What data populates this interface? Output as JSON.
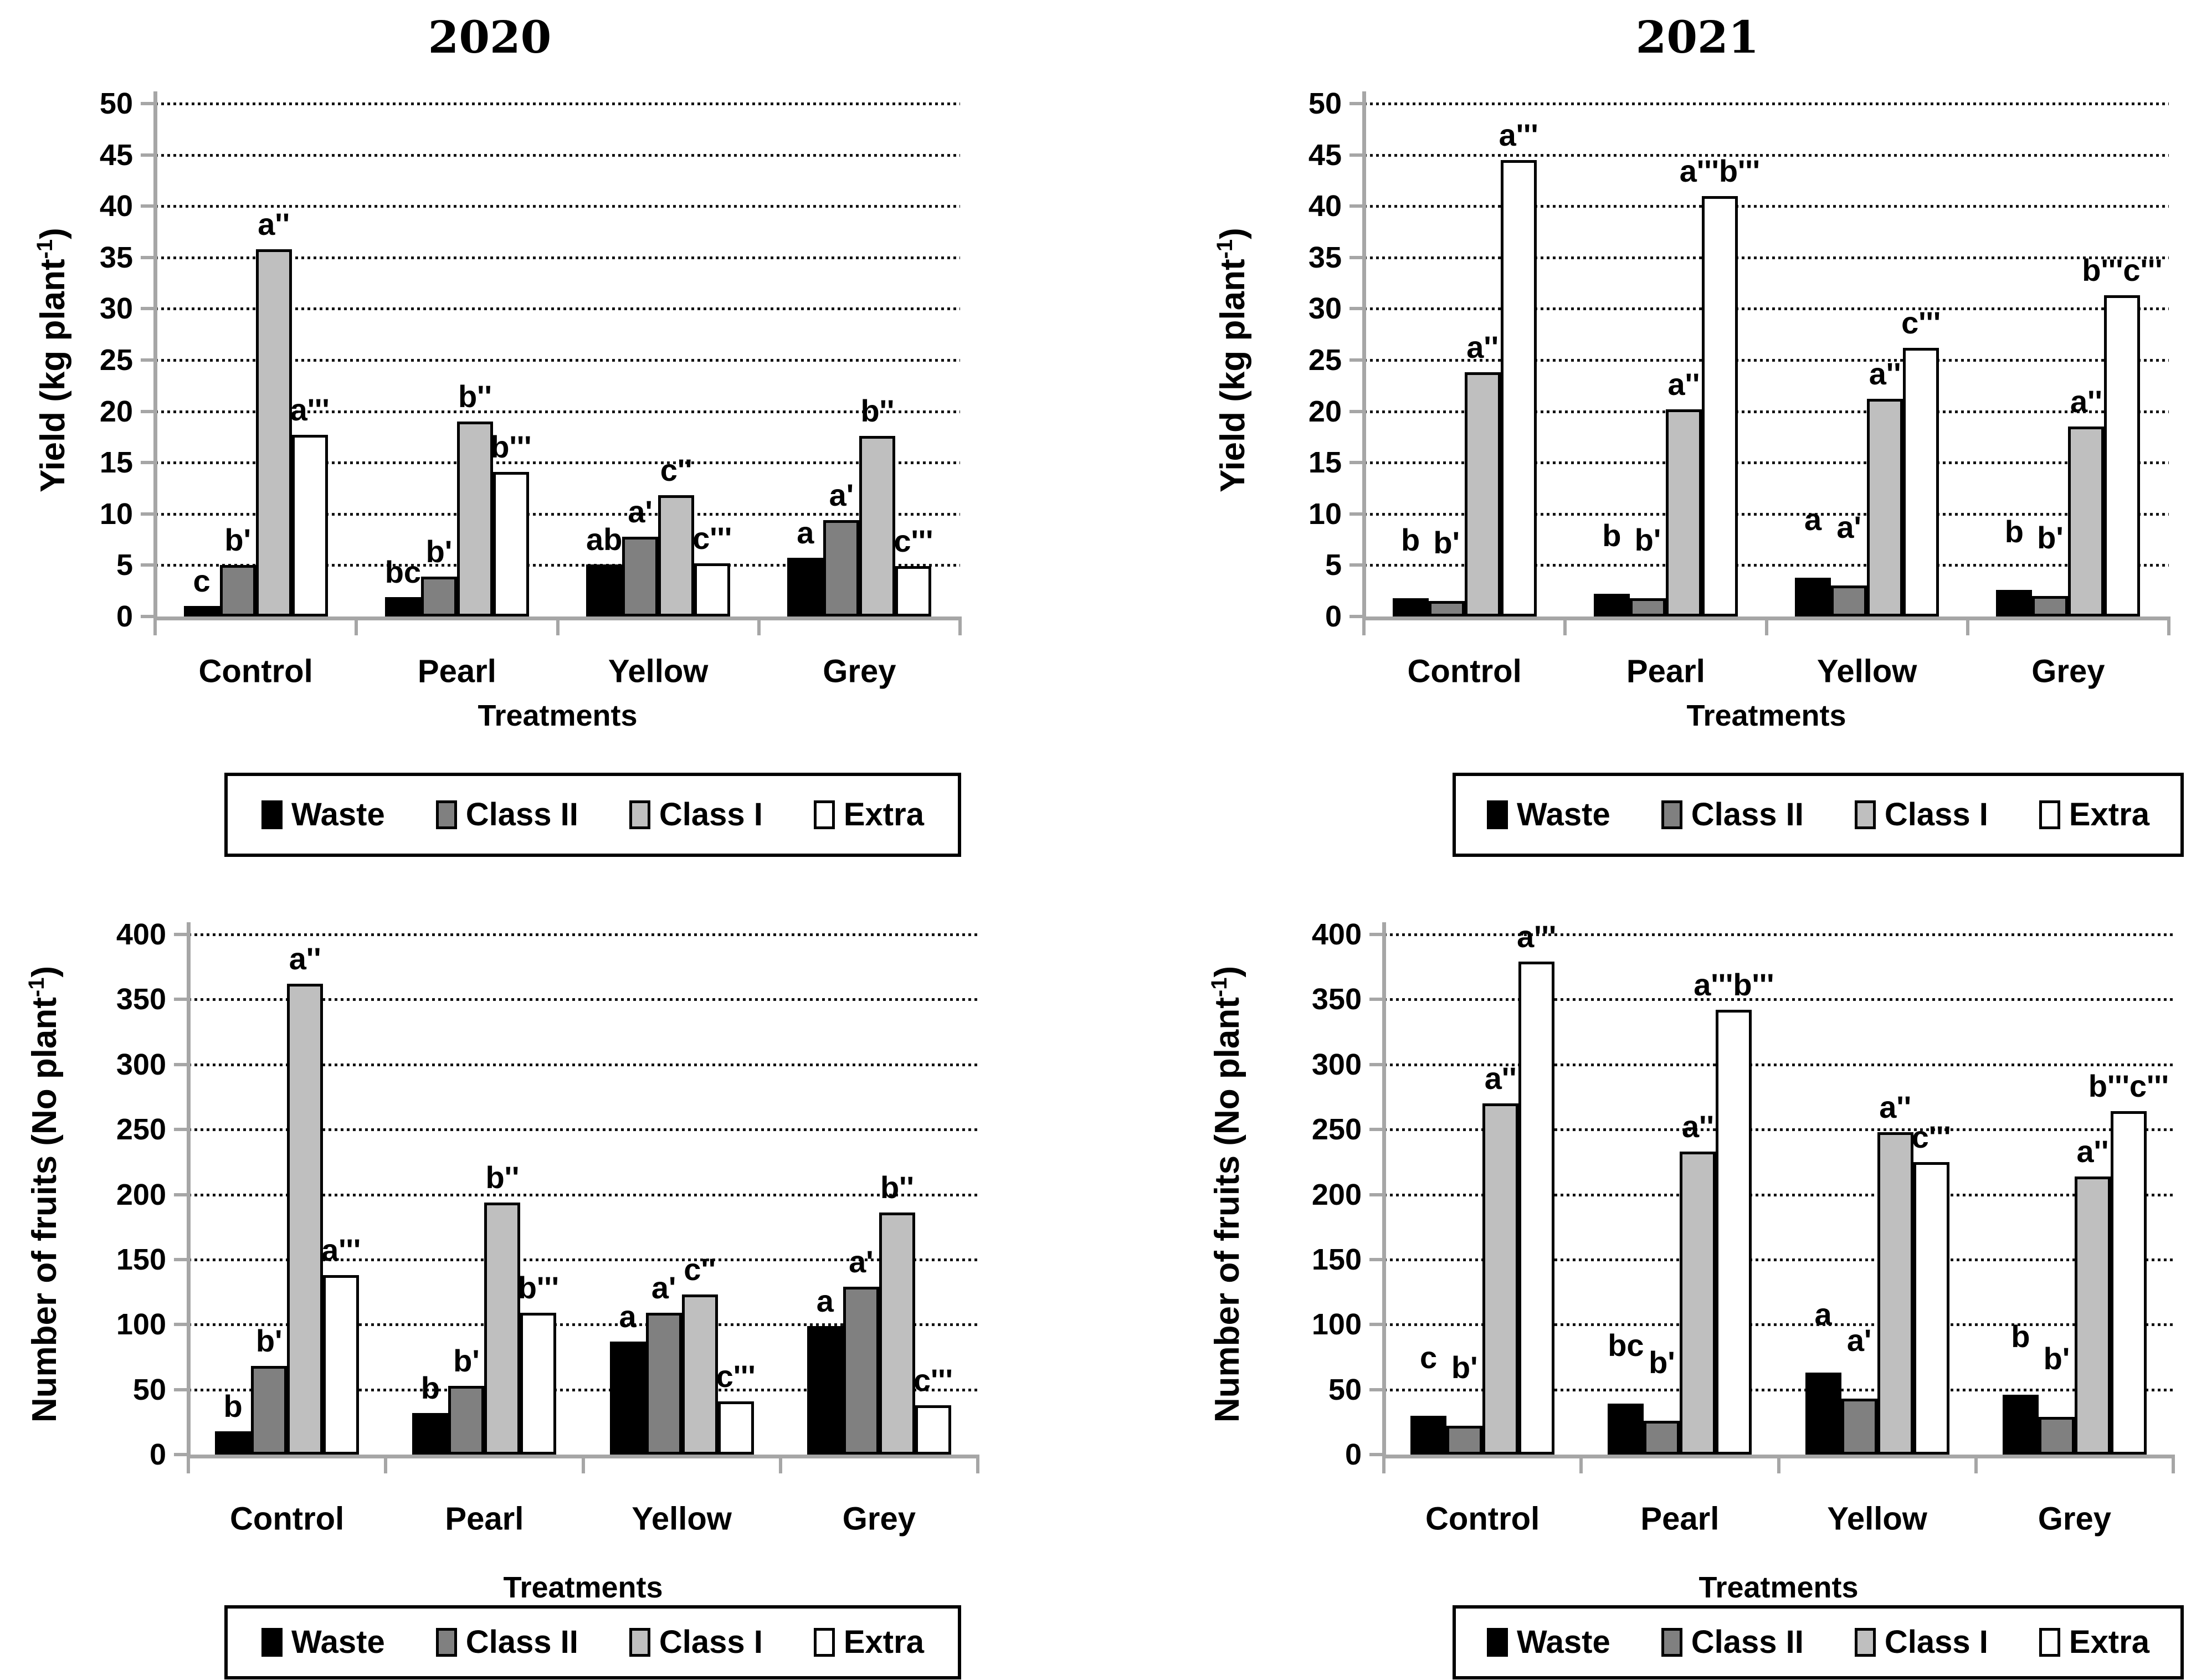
{
  "figure": {
    "background": "#ffffff",
    "treatments_label": "Treatments"
  },
  "categories": [
    "Control",
    "Pearl",
    "Yellow",
    "Grey"
  ],
  "series_colors": [
    "#000000",
    "#808080",
    "#bfbfbf",
    "#ffffff"
  ],
  "legend": {
    "items": [
      "Waste",
      "Class II",
      "Class I",
      "Extra"
    ]
  },
  "chart_data": [
    {
      "id": "yield-2020",
      "type": "bar",
      "title": "2020",
      "ylabel_main": "Yield (kg plant",
      "ylabel_sup": "-1",
      "ylabel_end": ")",
      "xlabel": "Treatments",
      "ylim": [
        0,
        50
      ],
      "ystep": 5,
      "grid": true,
      "legend_position": "bottom",
      "yticks": [
        "0",
        "5",
        "10",
        "15",
        "20",
        "25",
        "30",
        "35",
        "40",
        "45",
        "50"
      ],
      "categories": [
        "Control",
        "Pearl",
        "Yellow",
        "Grey"
      ],
      "series": [
        {
          "name": "Waste",
          "values": [
            1.0,
            1.9,
            5.1,
            5.7
          ]
        },
        {
          "name": "Class II",
          "values": [
            5.0,
            3.9,
            7.8,
            9.4
          ]
        },
        {
          "name": "Class I",
          "values": [
            35.8,
            19.0,
            11.8,
            17.6
          ]
        },
        {
          "name": "Extra",
          "values": [
            17.7,
            14.1,
            5.2,
            4.9
          ]
        }
      ],
      "letters": [
        [
          "c",
          "b'",
          "a''",
          "a'''"
        ],
        [
          "bc",
          "b'",
          "b''",
          "b'''"
        ],
        [
          "ab",
          "a'",
          "c''",
          "c'''"
        ],
        [
          "a",
          "a'",
          "b''",
          "c'''"
        ]
      ]
    },
    {
      "id": "yield-2021",
      "type": "bar",
      "title": "2021",
      "ylabel_main": "Yield (kg plant",
      "ylabel_sup": "-1",
      "ylabel_end": ")",
      "xlabel": "Treatments",
      "ylim": [
        0,
        50
      ],
      "ystep": 5,
      "grid": true,
      "legend_position": "bottom",
      "yticks": [
        "0",
        "5",
        "10",
        "15",
        "20",
        "25",
        "30",
        "35",
        "40",
        "45",
        "50"
      ],
      "categories": [
        "Control",
        "Pearl",
        "Yellow",
        "Grey"
      ],
      "series": [
        {
          "name": "Waste",
          "values": [
            1.8,
            2.2,
            3.8,
            2.6
          ]
        },
        {
          "name": "Class II",
          "values": [
            1.5,
            1.8,
            3.0,
            2.0
          ]
        },
        {
          "name": "Class I",
          "values": [
            23.8,
            20.2,
            21.2,
            18.5
          ]
        },
        {
          "name": "Extra",
          "values": [
            44.5,
            41.0,
            26.2,
            31.3
          ]
        }
      ],
      "letters": [
        [
          "b",
          "b'",
          "a''",
          "a'''"
        ],
        [
          "b",
          "b'",
          "a''",
          "a'''b'''"
        ],
        [
          "a",
          "a'",
          "a''",
          "c'''"
        ],
        [
          "b",
          "b'",
          "a''",
          "b'''c'''"
        ]
      ]
    },
    {
      "id": "fruits-2020",
      "type": "bar",
      "title": "",
      "ylabel_main": "Number of fruits (No plant",
      "ylabel_sup": "-1",
      "ylabel_end": ")",
      "xlabel": "Treatments",
      "ylim": [
        0,
        400
      ],
      "ystep": 50,
      "grid": true,
      "legend_position": "bottom",
      "yticks": [
        "0",
        "50",
        "100",
        "150",
        "200",
        "250",
        "300",
        "350",
        "400"
      ],
      "categories": [
        "Control",
        "Pearl",
        "Yellow",
        "Grey"
      ],
      "series": [
        {
          "name": "Waste",
          "values": [
            18,
            32,
            87,
            99
          ]
        },
        {
          "name": "Class II",
          "values": [
            68,
            53,
            109,
            129
          ]
        },
        {
          "name": "Class I",
          "values": [
            362,
            194,
            123,
            186
          ]
        },
        {
          "name": "Extra",
          "values": [
            138,
            109,
            41,
            38
          ]
        }
      ],
      "letters": [
        [
          "b",
          "b'",
          "a''",
          "a'''"
        ],
        [
          "b",
          "b'",
          "b''",
          "b'''"
        ],
        [
          "a",
          "a'",
          "c''",
          "c'''"
        ],
        [
          "a",
          "a'",
          "b''",
          "c'''"
        ]
      ]
    },
    {
      "id": "fruits-2021",
      "type": "bar",
      "title": "",
      "ylabel_main": "Number of fruits (No plant",
      "ylabel_sup": "-1",
      "ylabel_end": ")",
      "xlabel": "Treatments",
      "ylim": [
        0,
        400
      ],
      "ystep": 50,
      "grid": true,
      "legend_position": "bottom",
      "yticks": [
        "0",
        "50",
        "100",
        "150",
        "200",
        "250",
        "300",
        "350",
        "400"
      ],
      "categories": [
        "Control",
        "Pearl",
        "Yellow",
        "Grey"
      ],
      "series": [
        {
          "name": "Waste",
          "values": [
            30,
            39,
            63,
            46
          ]
        },
        {
          "name": "Class II",
          "values": [
            22,
            26,
            43,
            29
          ]
        },
        {
          "name": "Class I",
          "values": [
            270,
            233,
            248,
            214
          ]
        },
        {
          "name": "Extra",
          "values": [
            379,
            342,
            225,
            264
          ]
        }
      ],
      "letters": [
        [
          "c",
          "b'",
          "a''",
          "a'''"
        ],
        [
          "bc",
          "b'",
          "a''",
          "a'''b'''"
        ],
        [
          "a",
          "a'",
          "a''",
          "c'''"
        ],
        [
          "b",
          "b'",
          "a''",
          "b'''c'''"
        ]
      ]
    }
  ]
}
